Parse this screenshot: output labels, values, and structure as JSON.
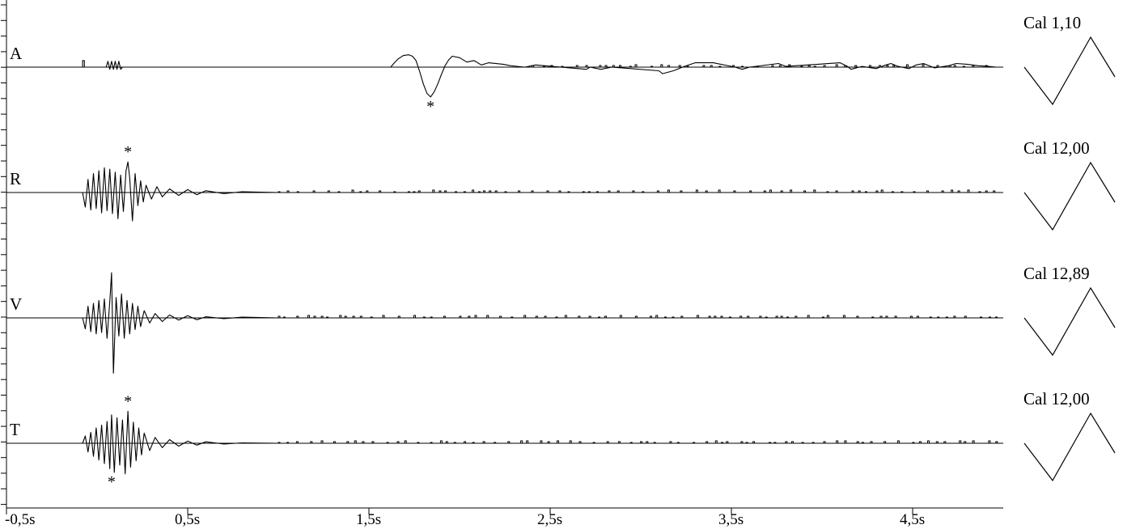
{
  "chart_data": {
    "type": "line",
    "title": "",
    "xlabel": "",
    "ylabel": "",
    "xlim": [
      -0.5,
      5.0
    ],
    "x_ticks": [
      -0.5,
      0.5,
      1.5,
      2.5,
      3.5,
      4.5
    ],
    "x_tick_labels": [
      "-0,5s",
      "0,5s",
      "1,5s",
      "2,5s",
      "3,5s",
      "4,5s"
    ],
    "grid": false,
    "line_color": "#000000",
    "series": [
      {
        "name": "A",
        "calibration": "Cal 1,10",
        "marker_symbol": "*",
        "marker_times": [
          1.84
        ],
        "x": [
          -0.5,
          -0.08,
          -0.08,
          -0.07,
          -0.07,
          0.05,
          0.06,
          0.07,
          0.08,
          0.09,
          0.1,
          0.11,
          0.12,
          0.13,
          0.14,
          1.62,
          1.64,
          1.66,
          1.69,
          1.72,
          1.74,
          1.76,
          1.78,
          1.8,
          1.82,
          1.84,
          1.86,
          1.88,
          1.9,
          1.92,
          1.94,
          1.96,
          2.0,
          2.04,
          2.08,
          2.12,
          2.16,
          2.24,
          2.28,
          2.36,
          2.42,
          2.7,
          2.72,
          2.78,
          2.84,
          3.1,
          3.12,
          3.18,
          3.24,
          3.3,
          3.4,
          3.52,
          3.56,
          3.6,
          3.76,
          3.8,
          4.1,
          4.14,
          4.16,
          4.22,
          4.3,
          4.34,
          4.38,
          4.42,
          4.48,
          4.52,
          4.56,
          4.62,
          4.7,
          4.74,
          4.8,
          4.86,
          4.92,
          4.96,
          5.0
        ],
        "y": [
          0,
          0,
          0.9,
          0.9,
          0,
          0,
          0.8,
          -0.3,
          0.8,
          -0.3,
          0.8,
          -0.3,
          0.8,
          -0.3,
          0,
          0,
          0.6,
          1.1,
          1.6,
          1.7,
          1.5,
          0.9,
          -0.6,
          -2.3,
          -3.6,
          -4.1,
          -3.4,
          -2.3,
          -1.0,
          0.2,
          1.0,
          1.5,
          1.3,
          0.7,
          0.9,
          0.3,
          0.6,
          0.4,
          0.2,
          0,
          0.3,
          -0.3,
          0,
          -0.3,
          0,
          -0.5,
          -0.9,
          -0.5,
          0.1,
          0.6,
          0.6,
          0,
          -0.3,
          0,
          0.5,
          0.1,
          0.6,
          0.1,
          -0.3,
          0.1,
          -0.2,
          0.2,
          0.5,
          0.1,
          -0.2,
          0.3,
          0.5,
          -0.1,
          0.2,
          0.5,
          0.4,
          0.2,
          0.1,
          0,
          0
        ]
      },
      {
        "name": "R",
        "calibration": "Cal 12,00",
        "marker_symbol": "*",
        "marker_times": [
          0.17
        ],
        "x": [
          -0.5,
          -0.08,
          -0.065,
          -0.05,
          -0.035,
          -0.02,
          -0.005,
          0.01,
          0.025,
          0.04,
          0.055,
          0.07,
          0.085,
          0.1,
          0.115,
          0.13,
          0.145,
          0.16,
          0.17,
          0.18,
          0.195,
          0.21,
          0.225,
          0.24,
          0.255,
          0.27,
          0.3,
          0.33,
          0.36,
          0.4,
          0.45,
          0.5,
          0.55,
          0.6,
          0.7,
          0.8,
          1.0,
          5.0
        ],
        "y": [
          0,
          0,
          -2.0,
          1.8,
          -2.4,
          2.6,
          -2.2,
          3.0,
          -2.8,
          3.4,
          -2.5,
          3.2,
          -2.9,
          2.8,
          -3.6,
          2.4,
          -2.6,
          3.0,
          4.2,
          2.0,
          -3.9,
          2.6,
          -1.8,
          1.6,
          -1.3,
          1.0,
          -0.9,
          0.8,
          -0.6,
          0.5,
          -0.4,
          0.4,
          -0.3,
          0.25,
          -0.15,
          0.1,
          0,
          0
        ]
      },
      {
        "name": "V",
        "calibration": "Cal 12,89",
        "marker_symbol": "*",
        "marker_times": [],
        "x": [
          -0.5,
          -0.08,
          -0.065,
          -0.05,
          -0.035,
          -0.02,
          -0.005,
          0.01,
          0.025,
          0.04,
          0.055,
          0.07,
          0.08,
          0.09,
          0.105,
          0.12,
          0.135,
          0.15,
          0.165,
          0.18,
          0.195,
          0.21,
          0.225,
          0.24,
          0.26,
          0.29,
          0.32,
          0.36,
          0.4,
          0.45,
          0.5,
          0.55,
          0.6,
          0.7,
          0.8,
          1.0,
          5.0
        ],
        "y": [
          0,
          0,
          -1.5,
          1.6,
          -1.9,
          2.0,
          -2.2,
          2.4,
          -2.0,
          2.6,
          -2.8,
          2.2,
          6.2,
          -7.6,
          2.8,
          -2.5,
          3.3,
          -2.8,
          2.4,
          -2.2,
          2.0,
          -1.6,
          1.6,
          -1.2,
          1.0,
          -0.7,
          0.6,
          -0.5,
          0.4,
          -0.3,
          0.3,
          -0.25,
          0.15,
          -0.1,
          0.1,
          0,
          0
        ]
      },
      {
        "name": "T",
        "calibration": "Cal 12,00",
        "marker_symbol": "*",
        "marker_times": [
          0.08,
          0.17
        ],
        "x": [
          -0.5,
          -0.08,
          -0.065,
          -0.05,
          -0.035,
          -0.02,
          -0.005,
          0.01,
          0.025,
          0.04,
          0.055,
          0.07,
          0.08,
          0.095,
          0.11,
          0.125,
          0.14,
          0.155,
          0.17,
          0.185,
          0.2,
          0.215,
          0.23,
          0.245,
          0.26,
          0.29,
          0.32,
          0.36,
          0.4,
          0.45,
          0.5,
          0.55,
          0.6,
          0.7,
          0.8,
          1.0,
          5.0
        ],
        "y": [
          0,
          0,
          1.0,
          -1.2,
          1.5,
          -1.8,
          2.1,
          -2.3,
          2.5,
          -2.8,
          3.0,
          -3.5,
          3.9,
          -4.0,
          3.5,
          -3.0,
          3.2,
          -4.2,
          4.4,
          -3.3,
          2.9,
          -2.4,
          2.1,
          -1.6,
          1.4,
          -1.0,
          0.8,
          -0.6,
          0.5,
          -0.4,
          0.3,
          -0.25,
          0.2,
          -0.1,
          0.05,
          0,
          0
        ]
      }
    ]
  }
}
